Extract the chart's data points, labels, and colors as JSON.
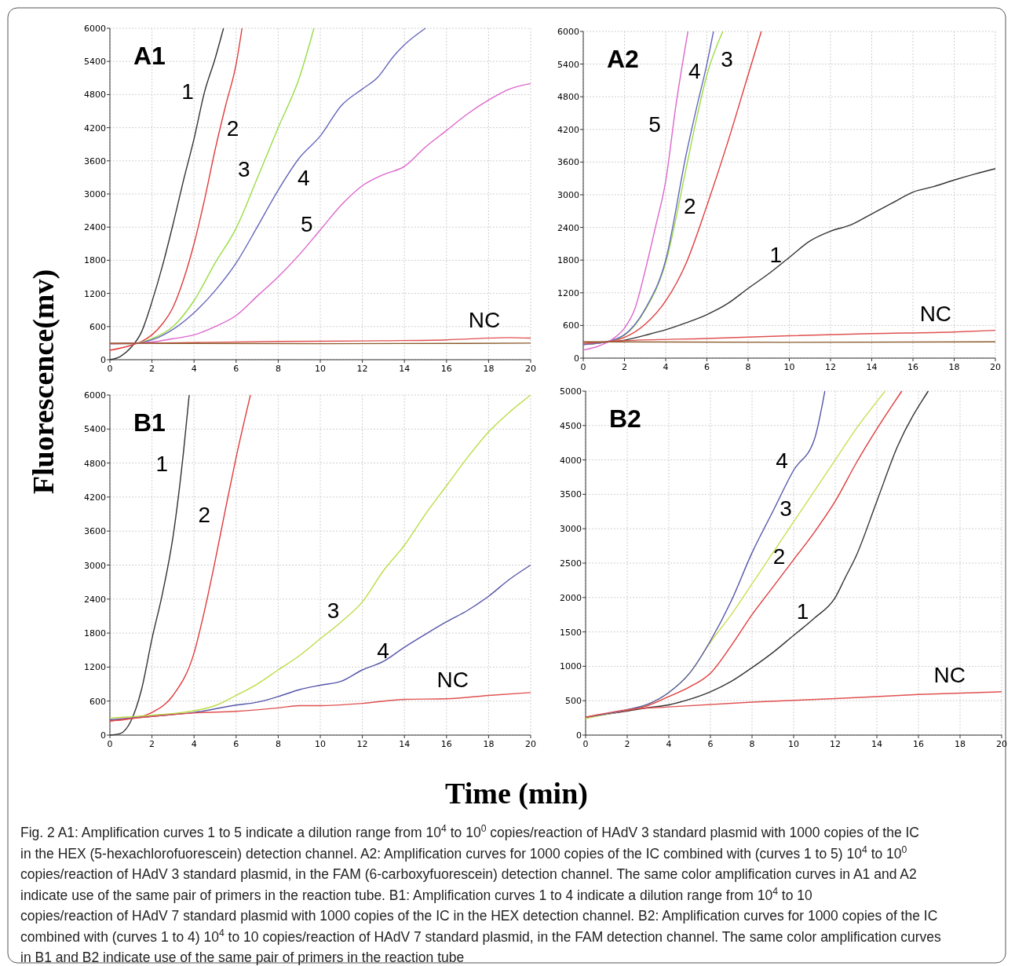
{
  "chart_data": [
    {
      "type": "line",
      "title": "A1",
      "ylabel": "Fluorescence(mv)",
      "xlim": [
        0,
        20
      ],
      "ylim": [
        0,
        6000
      ],
      "xticks": [
        0,
        2,
        4,
        6,
        8,
        10,
        12,
        14,
        16,
        18,
        20
      ],
      "yticks": [
        0,
        600,
        1200,
        1800,
        2400,
        3000,
        3600,
        4200,
        4800,
        5400,
        6000
      ],
      "grid": true,
      "marker": "none",
      "line_style": "solid",
      "series": [
        {
          "name": "1",
          "color": "#333333",
          "x": [
            0,
            0.5,
            1,
            1.5,
            2,
            2.5,
            3,
            3.5,
            4,
            4.5,
            5,
            5.4
          ],
          "values": [
            0,
            60,
            220,
            500,
            1050,
            1700,
            2450,
            3250,
            4000,
            4850,
            5450,
            6000
          ]
        },
        {
          "name": "2",
          "color": "#e03c3c",
          "x": [
            0,
            1,
            1.5,
            2,
            2.5,
            3,
            3.5,
            4,
            4.5,
            5,
            5.5,
            6,
            6.28
          ],
          "values": [
            170,
            260,
            330,
            450,
            650,
            950,
            1450,
            2100,
            2900,
            3800,
            4600,
            5350,
            6000
          ]
        },
        {
          "name": "3",
          "color": "#99dd44",
          "x": [
            0,
            1,
            2,
            3,
            4,
            5,
            6,
            7,
            8,
            9,
            9.7
          ],
          "values": [
            290,
            290,
            380,
            600,
            1070,
            1750,
            2380,
            3280,
            4200,
            5100,
            6000
          ]
        },
        {
          "name": "4",
          "color": "#6666bb",
          "x": [
            0,
            1,
            2,
            3,
            4,
            5,
            6,
            7,
            8,
            9,
            10,
            11,
            12,
            12.7,
            13.5,
            14,
            15
          ],
          "values": [
            290,
            290,
            360,
            550,
            850,
            1250,
            1750,
            2400,
            3070,
            3650,
            4050,
            4600,
            4900,
            5100,
            5500,
            5700,
            6000
          ]
        },
        {
          "name": "5",
          "color": "#dd66cc",
          "x": [
            0,
            2,
            3,
            4,
            5,
            6,
            7,
            8,
            9,
            10,
            11,
            12,
            13,
            14,
            15,
            16,
            17,
            18,
            19,
            20
          ],
          "values": [
            290,
            320,
            380,
            450,
            600,
            800,
            1150,
            1500,
            1900,
            2350,
            2800,
            3150,
            3350,
            3500,
            3850,
            4150,
            4450,
            4700,
            4900,
            5000
          ]
        },
        {
          "name": "NC",
          "color": "#e05050",
          "x": [
            0,
            4,
            8,
            12,
            16,
            19,
            20
          ],
          "values": [
            290,
            310,
            330,
            340,
            360,
            400,
            390
          ]
        },
        {
          "color": "#8b5a2b",
          "x": [
            0,
            10,
            20
          ],
          "values": [
            300,
            290,
            300
          ]
        }
      ]
    },
    {
      "type": "line",
      "title": "A2",
      "xlim": [
        0,
        20
      ],
      "ylim": [
        0,
        6000
      ],
      "xticks": [
        0,
        2,
        4,
        6,
        8,
        10,
        12,
        14,
        16,
        18,
        20
      ],
      "yticks": [
        0,
        600,
        1200,
        1800,
        2400,
        3000,
        3600,
        4200,
        4800,
        5400,
        6000
      ],
      "grid": true,
      "marker": "none",
      "line_style": "solid",
      "series": [
        {
          "name": "1",
          "color": "#333333",
          "x": [
            0,
            1,
            2,
            3,
            4,
            5,
            6,
            7,
            8,
            9,
            10,
            11,
            12,
            13,
            14,
            15,
            16,
            17,
            18,
            19,
            20
          ],
          "values": [
            250,
            290,
            330,
            420,
            520,
            650,
            800,
            1000,
            1280,
            1550,
            1850,
            2150,
            2330,
            2450,
            2650,
            2850,
            3050,
            3150,
            3270,
            3380,
            3480
          ]
        },
        {
          "name": "2",
          "color": "#e03c3c",
          "x": [
            0,
            1,
            2,
            3,
            4,
            5,
            6,
            7,
            8,
            8.64
          ],
          "values": [
            250,
            290,
            380,
            620,
            1050,
            1750,
            2800,
            3950,
            5200,
            6000
          ]
        },
        {
          "name": "3",
          "color": "#99dd44",
          "x": [
            0,
            1,
            2,
            3,
            4,
            5,
            5.5,
            6,
            6.77
          ],
          "values": [
            250,
            290,
            420,
            880,
            1750,
            3500,
            4400,
            5200,
            6000
          ]
        },
        {
          "name": "4",
          "color": "#6666bb",
          "x": [
            0,
            1,
            2,
            3,
            4,
            5,
            5.5,
            6,
            6.32
          ],
          "values": [
            250,
            290,
            430,
            900,
            1800,
            3750,
            4600,
            5400,
            6000
          ]
        },
        {
          "name": "5",
          "color": "#dd66cc",
          "x": [
            0,
            1,
            1.5,
            2,
            2.5,
            3,
            3.5,
            4,
            4.5,
            5.08
          ],
          "values": [
            150,
            260,
            370,
            550,
            900,
            1600,
            2400,
            3250,
            4650,
            6000
          ]
        },
        {
          "name": "NC",
          "color": "#e05050",
          "x": [
            0,
            2,
            6,
            10,
            14,
            18,
            20
          ],
          "values": [
            270,
            320,
            360,
            410,
            450,
            480,
            510
          ]
        },
        {
          "color": "#8b5a2b",
          "x": [
            0,
            10,
            20
          ],
          "values": [
            300,
            290,
            300
          ]
        }
      ]
    },
    {
      "type": "line",
      "title": "B1",
      "xlabel": "Time (min)",
      "xlim": [
        0,
        20
      ],
      "ylim": [
        0,
        6000
      ],
      "xticks": [
        0,
        2,
        4,
        6,
        8,
        10,
        12,
        14,
        16,
        18,
        20
      ],
      "yticks": [
        0,
        600,
        1200,
        1800,
        2400,
        3000,
        3600,
        4200,
        4800,
        5400,
        6000
      ],
      "grid": true,
      "marker": "none",
      "line_style": "solid",
      "series": [
        {
          "name": "1",
          "color": "#333333",
          "x": [
            0,
            0.5,
            1,
            1.5,
            2,
            2.5,
            3,
            3.5,
            3.77
          ],
          "values": [
            0,
            30,
            250,
            800,
            1700,
            2500,
            3500,
            5000,
            6000
          ]
        },
        {
          "name": "2",
          "color": "#e03c3c",
          "x": [
            0,
            1,
            2,
            3,
            4,
            4.5,
            5,
            5.5,
            6,
            6.68
          ],
          "values": [
            250,
            290,
            400,
            700,
            1450,
            2200,
            3070,
            4000,
            4900,
            6000
          ]
        },
        {
          "name": "3",
          "color": "#bbdd44",
          "x": [
            0,
            2,
            4,
            5,
            6,
            7,
            8,
            9,
            10,
            11,
            12,
            13,
            14,
            15,
            16,
            17,
            18,
            19,
            20
          ],
          "values": [
            300,
            350,
            430,
            520,
            700,
            900,
            1150,
            1400,
            1700,
            2000,
            2350,
            2900,
            3350,
            3900,
            4400,
            4900,
            5350,
            5700,
            6000
          ]
        },
        {
          "name": "4",
          "color": "#5555aa",
          "x": [
            0,
            2,
            4,
            6,
            7,
            8,
            9,
            10,
            11,
            12,
            13,
            14,
            15,
            16,
            17,
            18,
            19,
            20
          ],
          "values": [
            270,
            330,
            400,
            530,
            580,
            680,
            800,
            880,
            950,
            1150,
            1300,
            1550,
            1780,
            2000,
            2200,
            2450,
            2750,
            3000
          ]
        },
        {
          "name": "NC",
          "color": "#e05050",
          "x": [
            0,
            2,
            4,
            6,
            8,
            9,
            10,
            12,
            14,
            16,
            18,
            20
          ],
          "values": [
            250,
            330,
            390,
            420,
            480,
            520,
            520,
            560,
            630,
            640,
            700,
            750
          ]
        }
      ]
    },
    {
      "type": "line",
      "title": "B2",
      "xlim": [
        0,
        20
      ],
      "ylim": [
        0,
        5000
      ],
      "xticks": [
        0,
        2,
        4,
        6,
        8,
        10,
        12,
        14,
        16,
        18,
        20
      ],
      "yticks": [
        0,
        500,
        1000,
        1500,
        2000,
        2500,
        3000,
        3500,
        4000,
        4500,
        5000
      ],
      "grid": true,
      "marker": "none",
      "line_style": "solid",
      "series": [
        {
          "name": "1",
          "color": "#333333",
          "x": [
            0,
            2,
            3,
            4,
            5,
            6,
            7,
            8,
            9,
            10,
            11,
            12,
            12.5,
            13,
            14,
            15,
            16.47
          ],
          "values": [
            260,
            350,
            400,
            440,
            520,
            630,
            780,
            980,
            1200,
            1450,
            1700,
            2000,
            2300,
            2600,
            3400,
            4200,
            5000
          ]
        },
        {
          "name": "2",
          "color": "#e03c3c",
          "x": [
            0,
            2,
            3,
            4,
            5,
            6,
            7,
            8,
            9,
            10,
            11,
            12,
            13,
            14,
            15.2
          ],
          "values": [
            260,
            360,
            430,
            560,
            700,
            900,
            1300,
            1750,
            2150,
            2550,
            2950,
            3400,
            3950,
            4450,
            5000
          ]
        },
        {
          "name": "3",
          "color": "#ccdd55",
          "x": [
            0,
            2,
            3,
            4,
            5,
            6,
            7,
            8,
            9,
            10,
            11,
            12,
            13,
            14.4
          ],
          "values": [
            240,
            370,
            450,
            620,
            900,
            1350,
            1750,
            2200,
            2650,
            3100,
            3550,
            4000,
            4450,
            5000
          ]
        },
        {
          "name": "4",
          "color": "#5555aa",
          "x": [
            0,
            2,
            3,
            4,
            5,
            6,
            7,
            8,
            9,
            10,
            11,
            11.5
          ],
          "values": [
            260,
            370,
            450,
            620,
            900,
            1370,
            1950,
            2650,
            3250,
            3850,
            4300,
            5000
          ]
        },
        {
          "name": "NC",
          "color": "#e05050",
          "x": [
            0,
            2,
            4,
            8,
            12,
            16,
            20
          ],
          "values": [
            260,
            370,
            410,
            480,
            530,
            590,
            630
          ]
        }
      ],
      "annotations": [
        "Fig. 2 A1: Amplification curves 1 to 5 indicate a dilution range from 10$^{4}$ to 10$^{0}$ copies/reaction of HAdV 3 standard plasmid with 1000 copies of the IC in the HEX (5-hexachlorofuorescein) detection channel. A2: Amplification curves for 1000 copies of the IC combined with (curves 1 to 5) 10$^{4}$ to 10$^{0}$ copies/reaction of HAdV 3 standard plasmid, in the FAM (6-carboxyfuorescein) detection channel. The same color amplification curves in A1 and A2 indicate use of the same pair of primers in the reaction tube. B1: Amplification curves 1 to 4 indicate a dilution range from 10$^{4}$ to 10 copies/reaction of HAdV 7 standard plasmid with 1000 copies of the IC in the HEX detection channel. B2: Amplification curves for 1000 copies of the IC combined with (curves 1 to 4) 10$^{4}$ to 10 copies/reaction of HAdV 7 standard plasmid, in the FAM detection channel. The same color amplification curves in B1 and B2 indicate use of the same pair of primers in the reaction tube"
      ]
    }
  ]
}
